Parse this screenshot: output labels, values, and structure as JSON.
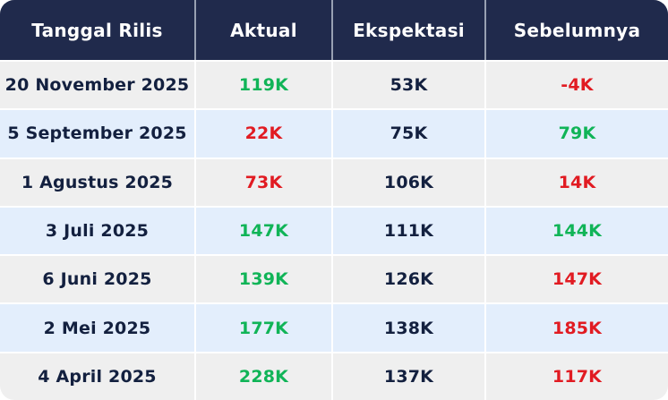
{
  "chart_data": {
    "type": "table",
    "columns": [
      "Tanggal Rilis",
      "Aktual",
      "Ekspektasi",
      "Sebelumnya"
    ],
    "rows": [
      {
        "tanggal_rilis": "20 November 2025",
        "aktual": "119K",
        "ekspektasi": "53K",
        "sebelumnya": "-4K",
        "aktual_color": "green",
        "ekspektasi_color": "dark",
        "sebelumnya_color": "red"
      },
      {
        "tanggal_rilis": "5 September 2025",
        "aktual": "22K",
        "ekspektasi": "75K",
        "sebelumnya": "79K",
        "aktual_color": "red",
        "ekspektasi_color": "dark",
        "sebelumnya_color": "green"
      },
      {
        "tanggal_rilis": "1 Agustus 2025",
        "aktual": "73K",
        "ekspektasi": "106K",
        "sebelumnya": "14K",
        "aktual_color": "red",
        "ekspektasi_color": "dark",
        "sebelumnya_color": "red"
      },
      {
        "tanggal_rilis": "3 Juli 2025",
        "aktual": "147K",
        "ekspektasi": "111K",
        "sebelumnya": "144K",
        "aktual_color": "green",
        "ekspektasi_color": "dark",
        "sebelumnya_color": "green"
      },
      {
        "tanggal_rilis": "6 Juni 2025",
        "aktual": "139K",
        "ekspektasi": "126K",
        "sebelumnya": "147K",
        "aktual_color": "green",
        "ekspektasi_color": "dark",
        "sebelumnya_color": "red"
      },
      {
        "tanggal_rilis": "2 Mei 2025",
        "aktual": "177K",
        "ekspektasi": "138K",
        "sebelumnya": "185K",
        "aktual_color": "green",
        "ekspektasi_color": "dark",
        "sebelumnya_color": "red"
      },
      {
        "tanggal_rilis": "4 April 2025",
        "aktual": "228K",
        "ekspektasi": "137K",
        "sebelumnya": "117K",
        "aktual_color": "green",
        "ekspektasi_color": "dark",
        "sebelumnya_color": "red"
      }
    ]
  },
  "colors": {
    "green": "#10b457",
    "red": "#e11b22",
    "dark": "#13203f",
    "header_bg": "#202a4c",
    "header_text": "#ffffff",
    "row_gray": "#efefef",
    "row_blue": "#e3eefc"
  }
}
